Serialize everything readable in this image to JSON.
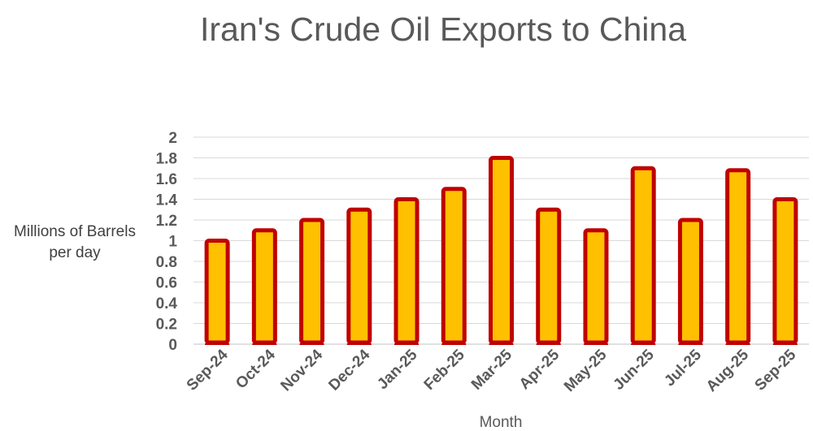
{
  "chart_data": {
    "type": "bar",
    "title": "Iran's Crude Oil Exports to China",
    "ylabel_lines": [
      "Millions of Barrels",
      "per day"
    ],
    "xlabel": "Month",
    "categories": [
      "Sep-24",
      "Oct-24",
      "Nov-24",
      "Dec-24",
      "Jan-25",
      "Feb-25",
      "Mar-25",
      "Apr-25",
      "May-25",
      "Jun-25",
      "Jul-25",
      "Aug-25",
      "Sep-25"
    ],
    "values": [
      1.0,
      1.1,
      1.2,
      1.3,
      1.4,
      1.5,
      1.8,
      1.3,
      1.1,
      1.7,
      1.2,
      1.68,
      1.4
    ],
    "ylim": [
      0,
      2
    ],
    "yticks": [
      "0",
      "0.2",
      "0.4",
      "0.6",
      "0.8",
      "1",
      "1.2",
      "1.4",
      "1.6",
      "1.8",
      "2"
    ],
    "grid": true,
    "bar_fill": "#FFC000",
    "bar_border": "#C00000"
  }
}
